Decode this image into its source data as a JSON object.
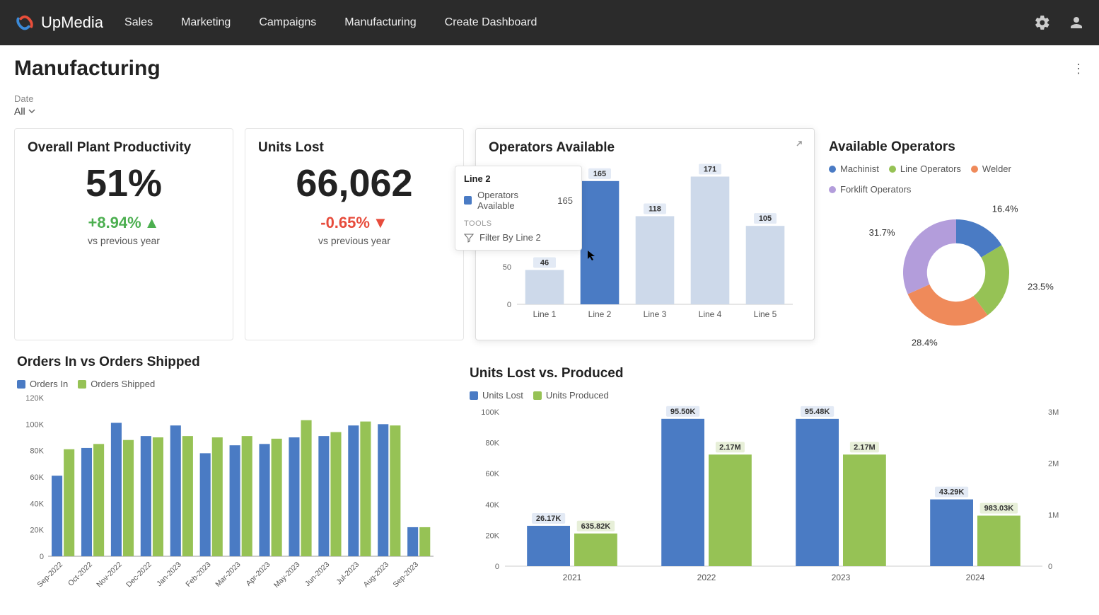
{
  "brand": {
    "name": "UpMedia"
  },
  "nav": {
    "items": [
      "Sales",
      "Marketing",
      "Campaigns",
      "Manufacturing",
      "Create Dashboard"
    ]
  },
  "page": {
    "title": "Manufacturing"
  },
  "filter": {
    "label": "Date",
    "value": "All"
  },
  "kpi_productivity": {
    "title": "Overall Plant Productivity",
    "value": "51%",
    "change": "+8.94%",
    "direction": "up",
    "sub": "vs previous year",
    "change_color": "#4caf50"
  },
  "kpi_units_lost": {
    "title": "Units Lost",
    "value": "66,062",
    "change": "-0.65%",
    "direction": "down",
    "sub": "vs previous year",
    "change_color": "#e74c3c"
  },
  "operators_available": {
    "title": "Operators Available",
    "type": "bar",
    "categories": [
      "Line 1",
      "Line 2",
      "Line 3",
      "Line 4",
      "Line 5"
    ],
    "values": [
      46,
      165,
      118,
      171,
      105
    ],
    "highlighted_index": 1,
    "bar_color": "#cdd9ea",
    "highlight_color": "#4a7bc4",
    "ylim": [
      0,
      180
    ],
    "yticks": [
      0,
      50,
      100,
      150
    ],
    "value_label_bg": "#e3eaf5"
  },
  "tooltip": {
    "title": "Line 2",
    "series_label": "Operators Available",
    "value": "165",
    "tools_label": "TOOLS",
    "filter_label": "Filter By Line 2",
    "swatch_color": "#4a7bc4"
  },
  "available_operators": {
    "title": "Available Operators",
    "type": "donut",
    "legend": [
      {
        "label": "Machinist",
        "color": "#4a7bc4"
      },
      {
        "label": "Line Operators",
        "color": "#96c255"
      },
      {
        "label": "Welder",
        "color": "#ef8a5a"
      },
      {
        "label": "Forklift Operators",
        "color": "#b39ddb"
      }
    ],
    "slices": [
      {
        "label": "16.4%",
        "value": 16.4,
        "color": "#4a7bc4"
      },
      {
        "label": "23.5%",
        "value": 23.5,
        "color": "#96c255"
      },
      {
        "label": "28.4%",
        "value": 28.4,
        "color": "#ef8a5a"
      },
      {
        "label": "31.7%",
        "value": 31.7,
        "color": "#b39ddb"
      }
    ],
    "inner_radius": 0.55
  },
  "orders_chart": {
    "title": "Orders In vs Orders Shipped",
    "type": "grouped_bar",
    "legend": [
      {
        "label": "Orders In",
        "color": "#4a7bc4"
      },
      {
        "label": "Orders Shipped",
        "color": "#96c255"
      }
    ],
    "categories": [
      "Sep-2022",
      "Oct-2022",
      "Nov-2022",
      "Dec-2022",
      "Jan-2023",
      "Feb-2023",
      "Mar-2023",
      "Apr-2023",
      "May-2023",
      "Jun-2023",
      "Jul-2023",
      "Aug-2023",
      "Sep-2023"
    ],
    "orders_in": [
      61000,
      82000,
      101000,
      91000,
      99000,
      78000,
      84000,
      85000,
      90000,
      91000,
      99000,
      100000,
      22000
    ],
    "orders_shipped": [
      81000,
      85000,
      88000,
      90000,
      91000,
      90000,
      91000,
      89000,
      103000,
      94000,
      102000,
      99000,
      22000
    ],
    "ylim": [
      0,
      120000
    ],
    "yticks": [
      0,
      20000,
      40000,
      60000,
      80000,
      100000,
      120000
    ],
    "ytick_labels": [
      "0",
      "20K",
      "40K",
      "60K",
      "80K",
      "100K",
      "120K"
    ]
  },
  "units_lost_produced": {
    "title": "Units Lost vs. Produced",
    "type": "dual_axis_bar",
    "legend": [
      {
        "label": "Units Lost",
        "color": "#4a7bc4"
      },
      {
        "label": "Units Produced",
        "color": "#96c255"
      }
    ],
    "categories": [
      "2021",
      "2022",
      "2023",
      "2024"
    ],
    "units_lost": [
      26170,
      95500,
      95480,
      43290
    ],
    "units_lost_labels": [
      "26.17K",
      "95.50K",
      "95.48K",
      "43.29K"
    ],
    "units_produced": [
      635820,
      2170000,
      2170000,
      983030
    ],
    "units_produced_labels": [
      "635.82K",
      "2.17M",
      "2.17M",
      "983.03K"
    ],
    "left_axis": {
      "ylim": [
        0,
        100000
      ],
      "ticks": [
        0,
        20000,
        40000,
        60000,
        80000,
        100000
      ],
      "labels": [
        "0",
        "20K",
        "40K",
        "60K",
        "80K",
        "100K"
      ]
    },
    "right_axis": {
      "ylim": [
        0,
        3000000
      ],
      "ticks": [
        0,
        1000000,
        2000000,
        3000000
      ],
      "labels": [
        "0",
        "1M",
        "2M",
        "3M"
      ]
    }
  },
  "colors": {
    "blue": "#4a7bc4",
    "green": "#96c255",
    "orange": "#ef8a5a",
    "purple": "#b39ddb",
    "light_blue": "#cdd9ea",
    "text": "#333333",
    "grid": "#e8e8e8"
  }
}
